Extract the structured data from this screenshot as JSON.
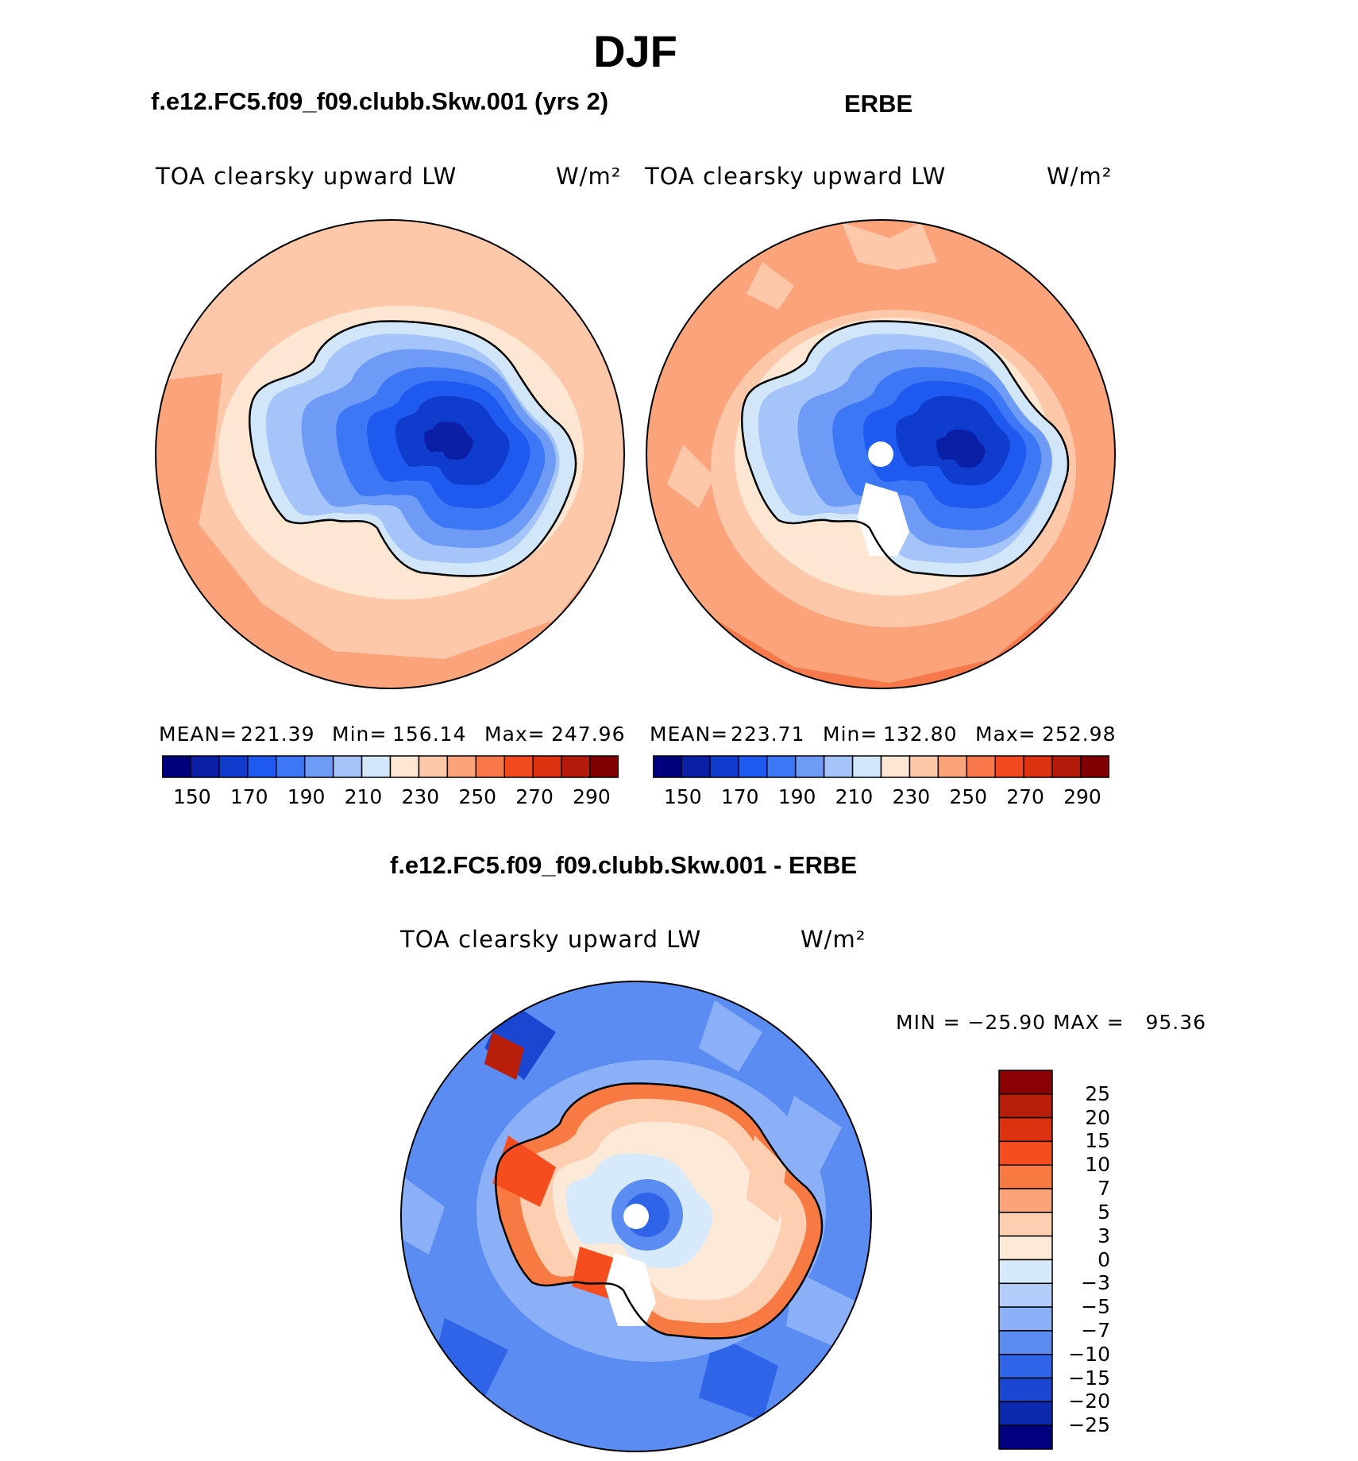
{
  "page_title": "DJF",
  "panels": [
    {
      "case_title": "f.e12.FC5.f09_f09.clubb.Skw.001 (yrs 2)",
      "variable": "TOA clearsky upward LW",
      "units": "W/m²",
      "stats": {
        "mean_label": "MEAN=",
        "mean": "221.39",
        "min_label": "Min=",
        "min": "156.14",
        "max_label": "Max=",
        "max": "247.96"
      }
    },
    {
      "case_title": "ERBE",
      "variable": "TOA clearsky upward LW",
      "units": "W/m²",
      "stats": {
        "mean_label": "MEAN=",
        "mean": "223.71",
        "min_label": "Min=",
        "min": "132.80",
        "max_label": "Max=",
        "max": "252.98"
      }
    }
  ],
  "diff_panel": {
    "case_title": "f.e12.FC5.f09_f09.clubb.Skw.001 - ERBE",
    "variable": "TOA clearsky upward LW",
    "units": "W/m²",
    "minmax": "MIN = −25.90 MAX =   95.36"
  },
  "abs_colorbar": {
    "colors": [
      "#00007f",
      "#0a1fa5",
      "#0f3ccc",
      "#1e5af0",
      "#3c78f5",
      "#6e9bf5",
      "#a5c4fa",
      "#d2e6fa",
      "#fde6d2",
      "#fdc8aa",
      "#fba47c",
      "#f7784a",
      "#f04a1e",
      "#dc320f",
      "#b4190a",
      "#800000"
    ],
    "labels": [
      "150",
      "170",
      "190",
      "210",
      "230",
      "250",
      "270",
      "290"
    ]
  },
  "diff_colorbar": {
    "colors_top_to_bottom": [
      "#8b0000",
      "#b81e0a",
      "#dc320f",
      "#f54d1e",
      "#f77a42",
      "#fba47c",
      "#fdcfb0",
      "#fde9d8",
      "#d6eafc",
      "#b3cdfa",
      "#8cb0f7",
      "#5a8cf2",
      "#2f64e8",
      "#1a46d2",
      "#0c2ab0",
      "#000080"
    ],
    "labels_top_to_bottom": [
      "25",
      "20",
      "15",
      "10",
      "7",
      "5",
      "3",
      "0",
      "−3",
      "−5",
      "−7",
      "−10",
      "−15",
      "−20",
      "−25"
    ]
  }
}
